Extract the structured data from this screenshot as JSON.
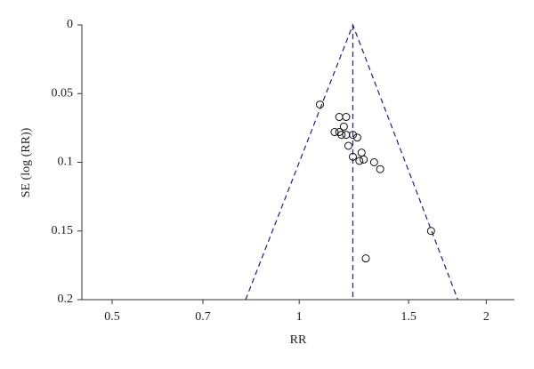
{
  "chart_data": {
    "type": "scatter",
    "x_label": "RR",
    "y_label": "SE (log (RR))",
    "x": [
      1.08,
      1.16,
      1.19,
      1.18,
      1.16,
      1.14,
      1.17,
      1.19,
      1.22,
      1.24,
      1.2,
      1.26,
      1.22,
      1.25,
      1.27,
      1.32,
      1.35,
      1.63,
      1.28
    ],
    "values": [
      0.058,
      0.067,
      0.067,
      0.074,
      0.078,
      0.078,
      0.08,
      0.08,
      0.08,
      0.082,
      0.088,
      0.093,
      0.096,
      0.099,
      0.098,
      0.1,
      0.105,
      0.15,
      0.17
    ],
    "marker_color": "#111111",
    "lines": [
      {
        "x": [
          0.82,
          1.22,
          1.8
        ],
        "values": [
          0.2,
          0,
          0.2
        ]
      },
      {
        "x": [
          1.22,
          1.22
        ],
        "values": [
          0,
          0.2
        ]
      }
    ],
    "line_color": "#1f1f8f",
    "line_dashed": true,
    "x_log": true,
    "y_inverted": true,
    "xlim": [
      0.447,
      2.22
    ],
    "ylim": [
      0,
      0.2
    ],
    "xticks": [
      0.5,
      0.7,
      1,
      1.5,
      2
    ],
    "yticks": [
      0,
      0.05,
      0.1,
      0.15,
      0.2
    ],
    "grid": false
  }
}
